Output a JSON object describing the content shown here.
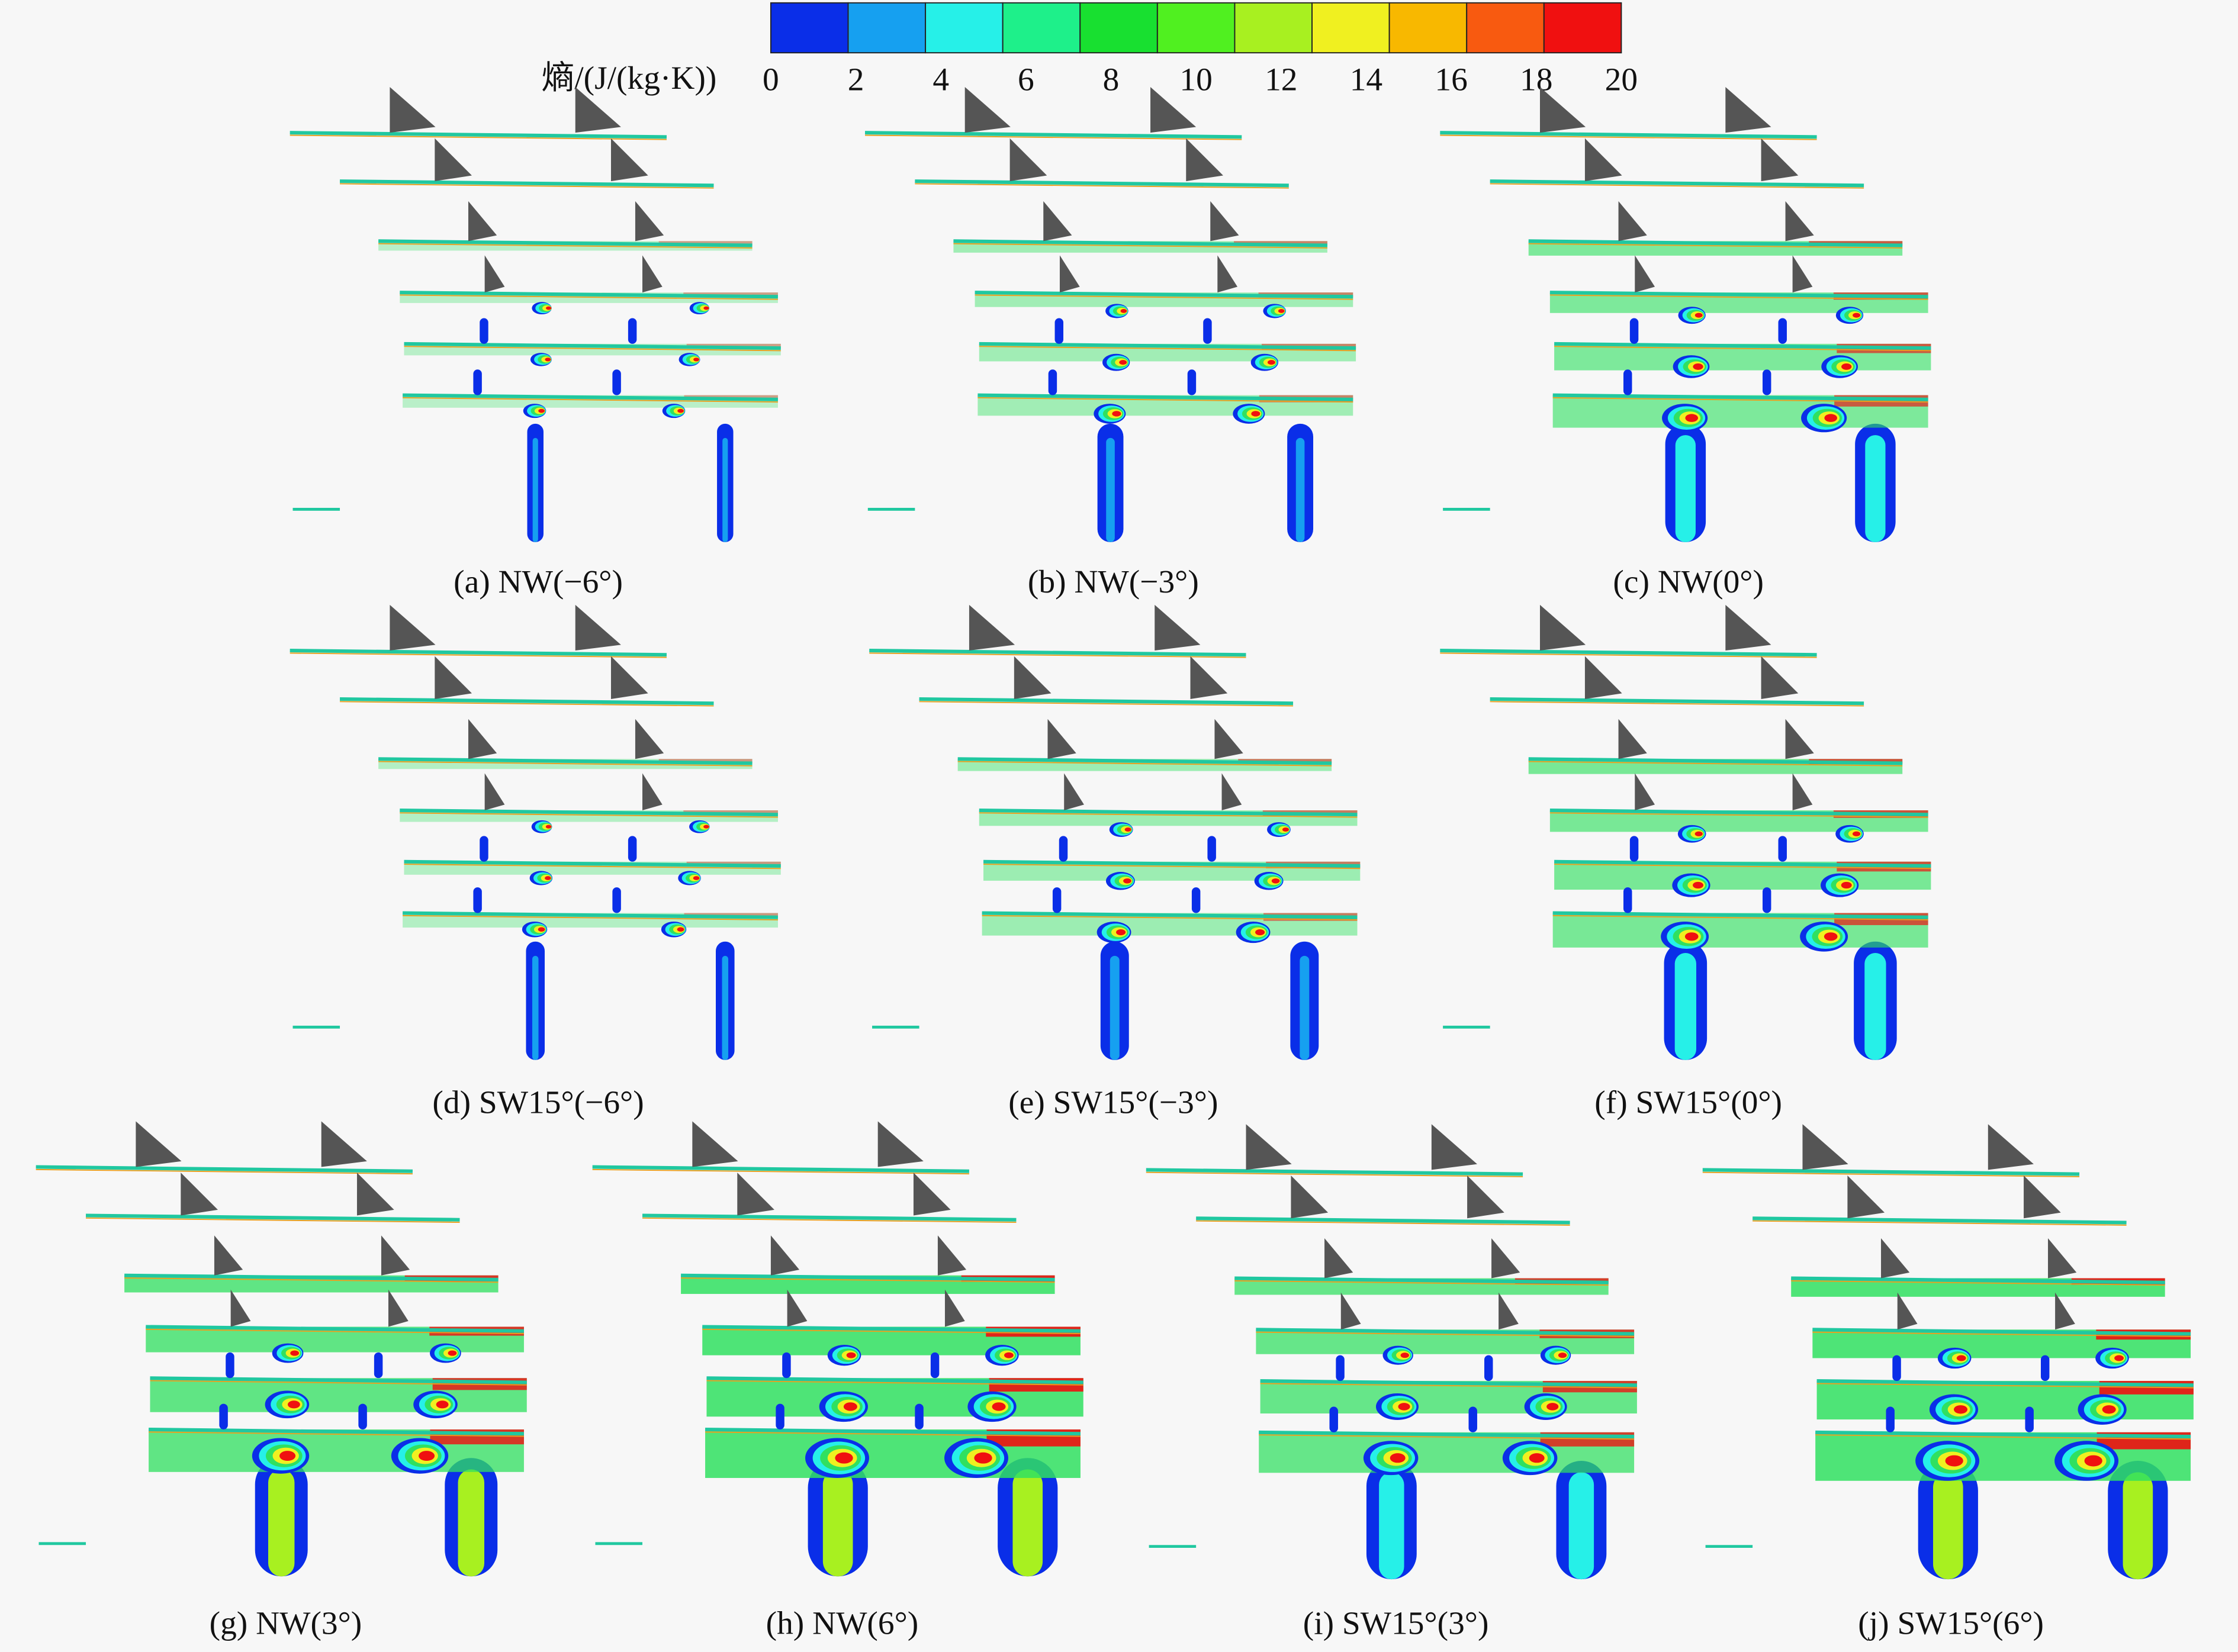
{
  "colorbar": {
    "label": "熵/(J/(kg·K))",
    "ticks": [
      "0",
      "2",
      "4",
      "6",
      "8",
      "10",
      "12",
      "14",
      "16",
      "18",
      "20"
    ]
  },
  "panels": [
    {
      "caption": "(a) NW(−6°)"
    },
    {
      "caption": "(b) NW(−3°)"
    },
    {
      "caption": "(c) NW(0°)"
    },
    {
      "caption": "(d) SW15°(−6°)"
    },
    {
      "caption": "(e) SW15°(−3°)"
    },
    {
      "caption": "(f) SW15°(0°)"
    },
    {
      "caption": "(g) NW(3°)"
    },
    {
      "caption": "(h) NW(6°)"
    },
    {
      "caption": "(i) SW15°(3°)"
    },
    {
      "caption": "(j) SW15°(6°)"
    }
  ]
}
